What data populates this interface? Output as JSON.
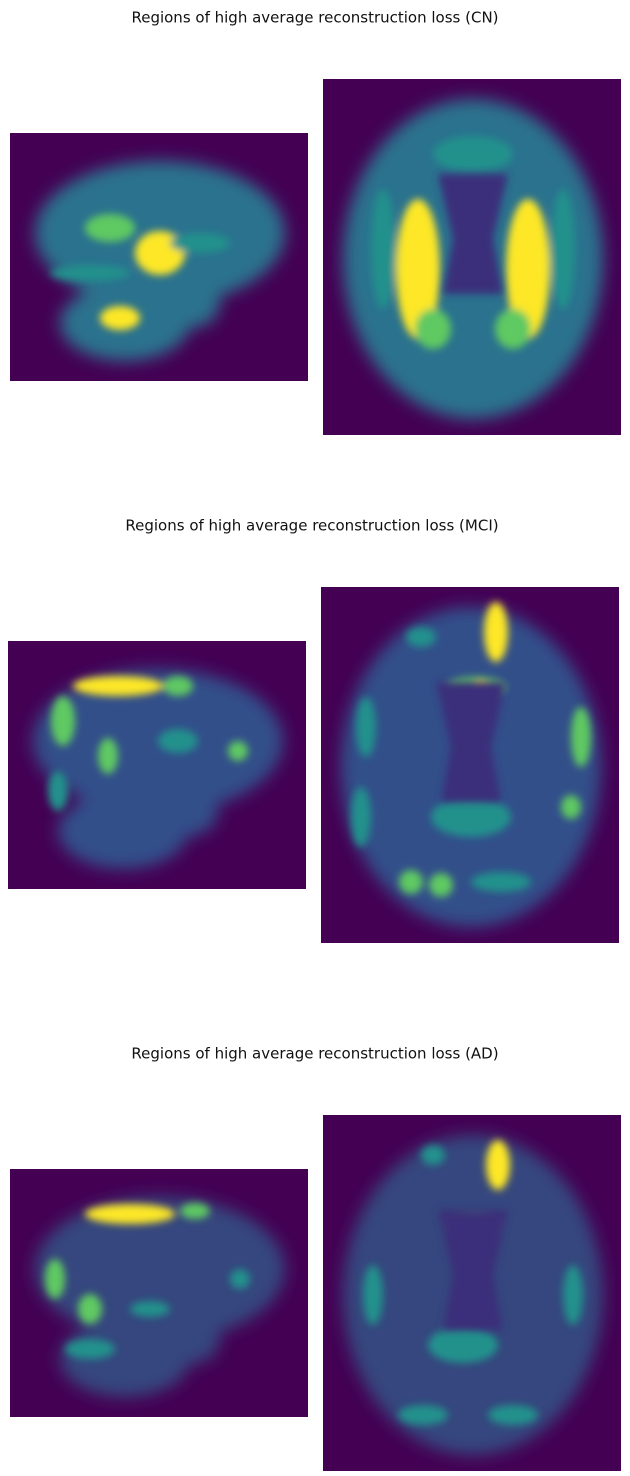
{
  "panels": [
    {
      "title": "Regions of high average reconstruction loss (CN)"
    },
    {
      "title": "Regions of high average reconstruction loss (MCI)"
    },
    {
      "title": "Regions of high average reconstruction loss (AD)"
    }
  ]
}
